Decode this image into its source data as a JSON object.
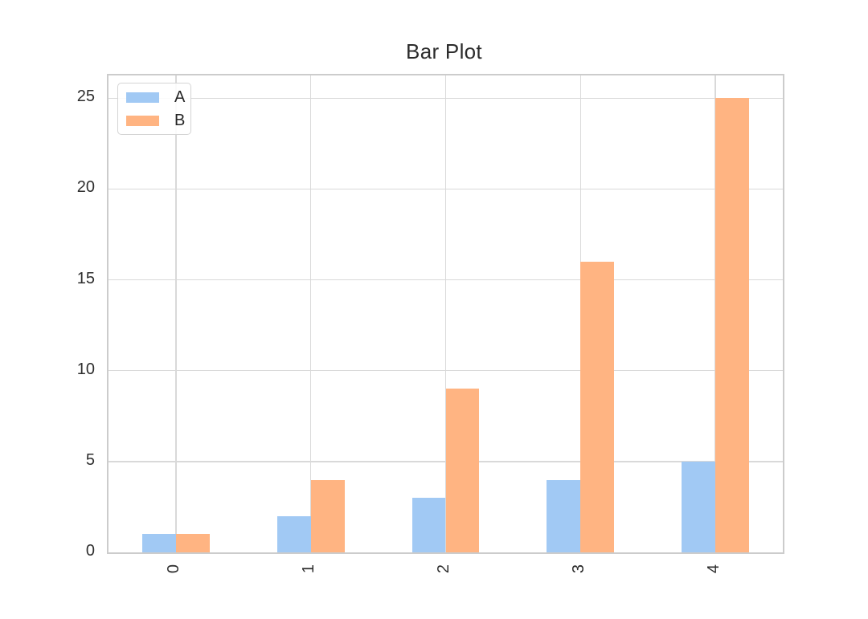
{
  "chart_data": {
    "type": "bar",
    "title": "Bar Plot",
    "categories": [
      "0",
      "1",
      "2",
      "3",
      "4"
    ],
    "series": [
      {
        "name": "A",
        "color": "#a1c9f4",
        "values": [
          1,
          2,
          3,
          4,
          5
        ]
      },
      {
        "name": "B",
        "color": "#ffb482",
        "values": [
          1,
          4,
          9,
          16,
          25
        ]
      }
    ],
    "yticks": [
      0,
      5,
      10,
      15,
      20,
      25
    ],
    "ylim": [
      0,
      26.25
    ],
    "xlim": [
      -0.5,
      4.5
    ],
    "bar_width": 0.25,
    "grid": true,
    "xtick_rotation": 90,
    "legend_position": "upper-left",
    "xlabel": "",
    "ylabel": ""
  },
  "colors": {
    "background": "#ffffff",
    "grid": "#d9d9d9",
    "spine": "#cccccc",
    "text": "#2e2e2e",
    "title_text": "#2b2b2b",
    "legend_border": "#d4d4d4",
    "series_a": "#a1c9f4",
    "series_b": "#ffb482"
  }
}
